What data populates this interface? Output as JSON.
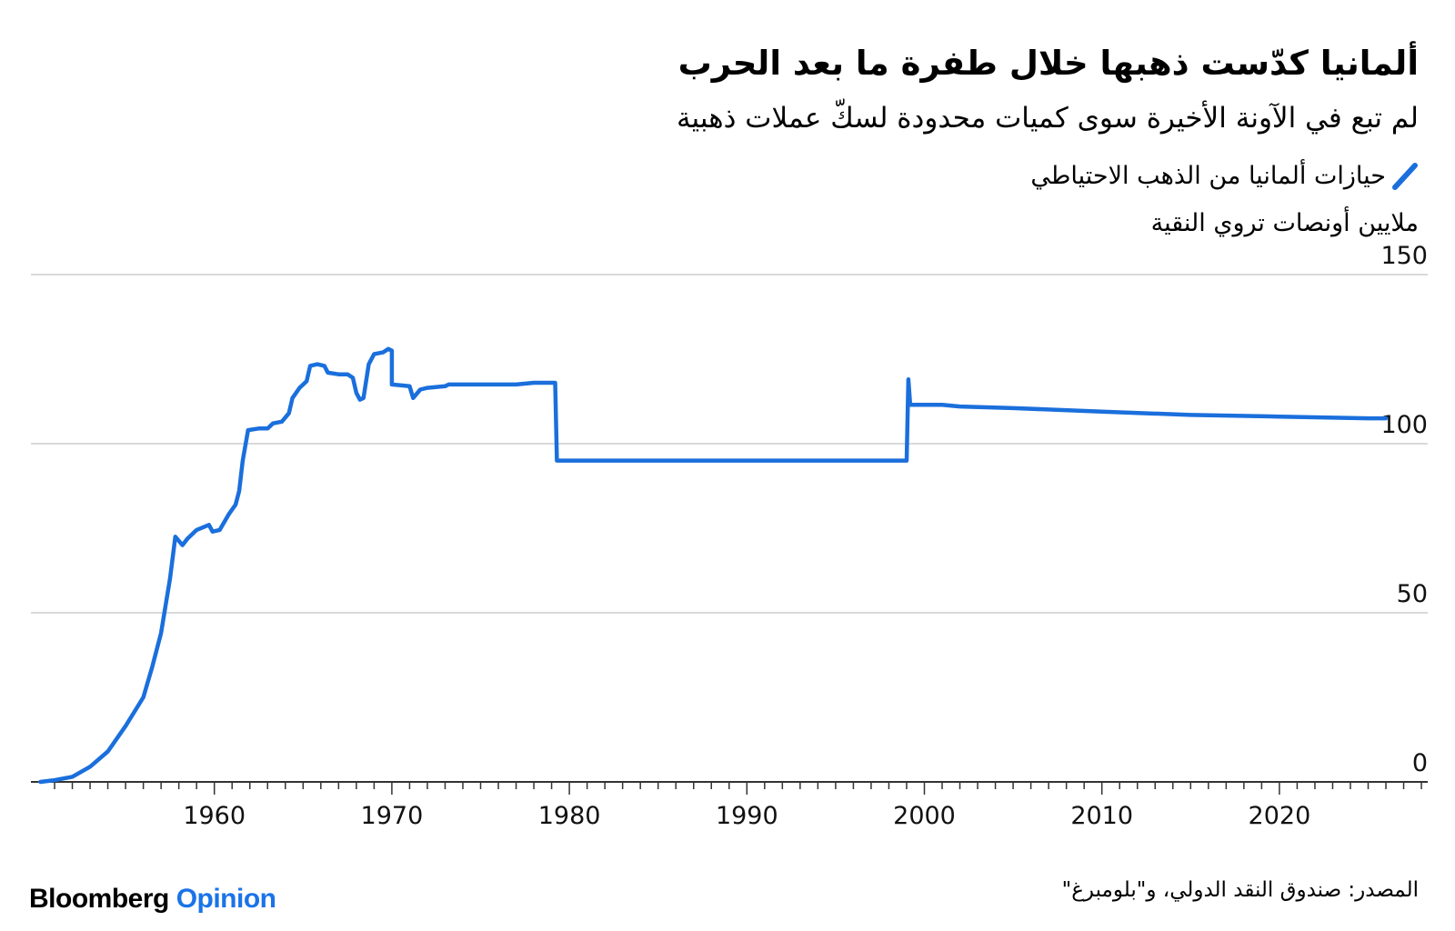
{
  "header": {
    "title": "ألمانيا كدّست ذهبها خلال طفرة ما بعد الحرب",
    "subtitle": "لم تبع في الآونة الأخيرة سوى كميات محدودة لسكّ عملات ذهبية",
    "legend_label": "حيازات ألمانيا من الذهب الاحتياطي",
    "unit": "ملايين أونصات تروي النقية"
  },
  "footer": {
    "source": "المصدر: صندوق النقد الدولي، و\"بلومبرغ\"",
    "brand_part1": "Bloomberg",
    "brand_part2": "Opinion"
  },
  "colors": {
    "line": "#1a6fdc",
    "grid": "#d9d9d9",
    "axis": "#333333"
  },
  "chart_data": {
    "type": "line",
    "title": "ألمانيا كدّست ذهبها خلال طفرة ما بعد الحرب",
    "subtitle": "لم تبع في الآونة الأخيرة سوى كميات محدودة لسكّ عملات ذهبية",
    "xlabel": "",
    "ylabel": "ملايين أونصات تروي النقية",
    "xlim": [
      1950,
      2029
    ],
    "ylim": [
      0,
      150
    ],
    "yticks": [
      0,
      50,
      100,
      150
    ],
    "xticks": [
      1960,
      1970,
      1980,
      1990,
      2000,
      2010,
      2020
    ],
    "grid": true,
    "legend": "top-right",
    "series": [
      {
        "name": "حيازات ألمانيا من الذهب الاحتياطي",
        "points": [
          [
            1950.2,
            0.0
          ],
          [
            1951.0,
            0.5
          ],
          [
            1952.0,
            1.5
          ],
          [
            1953.0,
            4.5
          ],
          [
            1954.0,
            9.0
          ],
          [
            1955.0,
            16.5
          ],
          [
            1956.0,
            25.0
          ],
          [
            1956.5,
            34.0
          ],
          [
            1957.0,
            44.0
          ],
          [
            1957.5,
            60.0
          ],
          [
            1957.8,
            72.5
          ],
          [
            1958.2,
            70.0
          ],
          [
            1958.5,
            72.0
          ],
          [
            1959.0,
            74.5
          ],
          [
            1959.7,
            76.0
          ],
          [
            1959.9,
            74.0
          ],
          [
            1960.3,
            74.5
          ],
          [
            1960.8,
            79.0
          ],
          [
            1961.2,
            82.0
          ],
          [
            1961.4,
            86.0
          ],
          [
            1961.6,
            95.0
          ],
          [
            1961.9,
            104.0
          ],
          [
            1962.5,
            104.5
          ],
          [
            1963.0,
            104.5
          ],
          [
            1963.3,
            106.0
          ],
          [
            1963.8,
            106.5
          ],
          [
            1964.2,
            109.0
          ],
          [
            1964.4,
            113.5
          ],
          [
            1964.8,
            116.5
          ],
          [
            1965.2,
            118.5
          ],
          [
            1965.4,
            123.0
          ],
          [
            1965.8,
            123.5
          ],
          [
            1966.2,
            123.0
          ],
          [
            1966.4,
            121.0
          ],
          [
            1967.0,
            120.5
          ],
          [
            1967.5,
            120.5
          ],
          [
            1967.8,
            119.5
          ],
          [
            1968.0,
            115.0
          ],
          [
            1968.2,
            113.0
          ],
          [
            1968.4,
            113.5
          ],
          [
            1968.7,
            123.5
          ],
          [
            1969.0,
            126.5
          ],
          [
            1969.5,
            127.0
          ],
          [
            1969.8,
            128.0
          ],
          [
            1970.0,
            127.5
          ],
          [
            1970.0,
            117.5
          ],
          [
            1971.0,
            117.0
          ],
          [
            1971.2,
            113.5
          ],
          [
            1971.6,
            116.0
          ],
          [
            1972.0,
            116.5
          ],
          [
            1973.0,
            117.0
          ],
          [
            1973.2,
            117.5
          ],
          [
            1977.0,
            117.5
          ],
          [
            1978.0,
            118.0
          ],
          [
            1979.2,
            118.0
          ],
          [
            1979.3,
            95.0
          ],
          [
            1980.0,
            95.0
          ],
          [
            1999.0,
            95.0
          ],
          [
            1999.1,
            119.0
          ],
          [
            1999.2,
            111.5
          ],
          [
            2001.0,
            111.5
          ],
          [
            2002.0,
            111.0
          ],
          [
            2005.0,
            110.5
          ],
          [
            2010.0,
            109.5
          ],
          [
            2015.0,
            108.5
          ],
          [
            2020.0,
            108.0
          ],
          [
            2025.0,
            107.5
          ],
          [
            2026.0,
            107.5
          ]
        ]
      }
    ]
  }
}
